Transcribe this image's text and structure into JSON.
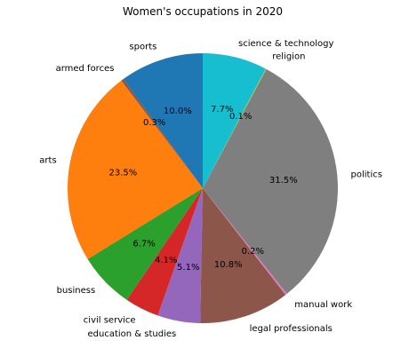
{
  "chart_data": {
    "type": "pie",
    "title": "Women's occupations in 2020",
    "start_angle_deg": 90,
    "direction": "counterclockwise",
    "slices": [
      {
        "label": "sports",
        "value": 10.0,
        "pct_label": "10.0%",
        "color": "#1f77b4"
      },
      {
        "label": "armed forces",
        "value": 0.3,
        "pct_label": "0.3%",
        "color": "#8c564b"
      },
      {
        "label": "arts",
        "value": 23.5,
        "pct_label": "23.5%",
        "color": "#ff7f0e"
      },
      {
        "label": "business",
        "value": 6.7,
        "pct_label": "6.7%",
        "color": "#2ca02c"
      },
      {
        "label": "civil service",
        "value": 4.1,
        "pct_label": "4.1%",
        "color": "#d62728"
      },
      {
        "label": "education & studies",
        "value": 5.1,
        "pct_label": "5.1%",
        "color": "#9467bd"
      },
      {
        "label": "legal professionals",
        "value": 10.8,
        "pct_label": "10.8%",
        "color": "#8c564b"
      },
      {
        "label": "manual work",
        "value": 0.2,
        "pct_label": "0.2%",
        "color": "#e377c2"
      },
      {
        "label": "politics",
        "value": 31.5,
        "pct_label": "31.5%",
        "color": "#7f7f7f"
      },
      {
        "label": "religion",
        "value": 0.1,
        "pct_label": "0.1%",
        "color": "#bcbd22"
      },
      {
        "label": "science & technology",
        "value": 7.7,
        "pct_label": "7.7%",
        "color": "#17becf"
      }
    ]
  }
}
